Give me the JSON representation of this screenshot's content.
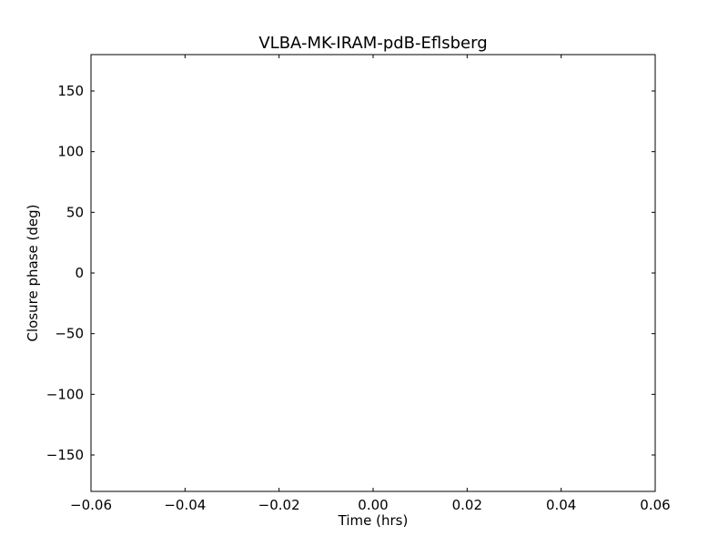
{
  "chart_data": {
    "type": "scatter",
    "title": "VLBA-MK-IRAM-pdB-Eflsberg",
    "xlabel": "Time (hrs)",
    "ylabel": "Closure phase (deg)",
    "xlim": [
      -0.06,
      0.06
    ],
    "ylim": [
      -180,
      180
    ],
    "xticks": [
      -0.06,
      -0.04,
      -0.02,
      0.0,
      0.02,
      0.04,
      0.06
    ],
    "xtick_labels": [
      "−0.06",
      "−0.04",
      "−0.02",
      "0.00",
      "0.02",
      "0.04",
      "0.06"
    ],
    "yticks": [
      -150,
      -100,
      -50,
      0,
      50,
      100,
      150
    ],
    "ytick_labels": [
      "−150",
      "−100",
      "−50",
      "0",
      "50",
      "100",
      "150"
    ],
    "grid": false,
    "series": []
  }
}
